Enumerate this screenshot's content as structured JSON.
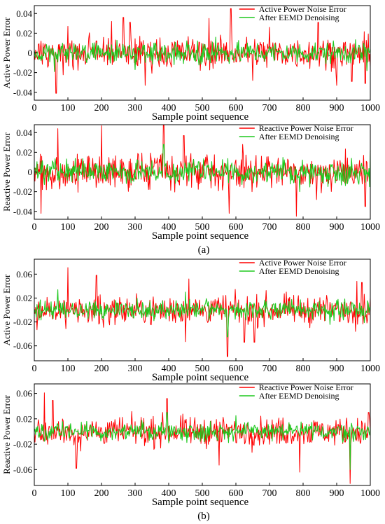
{
  "figure": {
    "captions": [
      "(a)",
      "(b)"
    ]
  },
  "chart_data": [
    {
      "type": "line",
      "ylabel": "Active Power Error",
      "xlabel": "Sample point sequence",
      "xlim": [
        0,
        1000
      ],
      "ylim": [
        -0.048,
        0.048
      ],
      "xticks": [
        0,
        100,
        200,
        300,
        400,
        500,
        600,
        700,
        800,
        900,
        1000
      ],
      "xtick_labels": [
        "0",
        "100",
        "200",
        "300",
        "400",
        "500",
        "600",
        "700",
        "800",
        "900",
        "1000"
      ],
      "yticks": [
        -0.04,
        -0.02,
        0,
        0.02,
        0.04
      ],
      "ytick_labels": [
        "-0.04",
        "-0.02",
        "0",
        "0.02",
        "0.04"
      ],
      "legend_position": "top-right",
      "series": [
        {
          "name": "Active Power Noise Error",
          "color": "#ff0000",
          "seed": 11,
          "amplitude": 0.008,
          "spikes": [
            [
              65,
              -0.041
            ],
            [
              100,
              0.027
            ],
            [
              230,
              0.032
            ],
            [
              265,
              0.036
            ],
            [
              285,
              0.031
            ],
            [
              330,
              -0.033
            ],
            [
              520,
              0.035
            ],
            [
              585,
              0.045
            ],
            [
              650,
              -0.028
            ],
            [
              700,
              0.026
            ],
            [
              845,
              0.031
            ],
            [
              900,
              -0.033
            ],
            [
              945,
              -0.029
            ],
            [
              985,
              -0.031
            ]
          ]
        },
        {
          "name": "After EEMD Denoising",
          "color": "#1ec81e",
          "seed": 12,
          "amplitude": 0.0055,
          "spikes": [
            [
              60,
              -0.019
            ],
            [
              300,
              -0.017
            ],
            [
              540,
              0.016
            ],
            [
              990,
              -0.018
            ]
          ]
        }
      ]
    },
    {
      "type": "line",
      "ylabel": "Reactive Power Error",
      "xlabel": "Sample point sequence",
      "xlim": [
        0,
        1000
      ],
      "ylim": [
        -0.048,
        0.048
      ],
      "xticks": [
        0,
        100,
        200,
        300,
        400,
        500,
        600,
        700,
        800,
        900,
        1000
      ],
      "xtick_labels": [
        "0",
        "100",
        "200",
        "300",
        "400",
        "500",
        "600",
        "700",
        "800",
        "900",
        "1000"
      ],
      "yticks": [
        -0.04,
        -0.02,
        0,
        0.02,
        0.04
      ],
      "ytick_labels": [
        "-0.04",
        "-0.02",
        "0",
        "0.02",
        "0.04"
      ],
      "legend_position": "top-right",
      "series": [
        {
          "name": "Reactive Power Noise Error",
          "color": "#ff0000",
          "seed": 21,
          "amplitude": 0.009,
          "spikes": [
            [
              20,
              -0.042
            ],
            [
              70,
              0.044
            ],
            [
              200,
              0.047
            ],
            [
              385,
              0.049
            ],
            [
              445,
              0.037
            ],
            [
              580,
              -0.042
            ],
            [
              620,
              0.028
            ],
            [
              780,
              -0.045
            ],
            [
              840,
              -0.028
            ],
            [
              985,
              -0.035
            ]
          ]
        },
        {
          "name": "After EEMD Denoising",
          "color": "#1ec81e",
          "seed": 22,
          "amplitude": 0.006,
          "spikes": [
            [
              385,
              0.028
            ],
            [
              790,
              -0.02
            ],
            [
              1000,
              0.022
            ]
          ]
        }
      ]
    },
    {
      "type": "line",
      "ylabel": "Active Power Error",
      "xlabel": "Sample point sequence",
      "xlim": [
        0,
        1000
      ],
      "ylim": [
        -0.085,
        0.085
      ],
      "xticks": [
        0,
        100,
        200,
        300,
        400,
        500,
        600,
        700,
        800,
        900,
        1000
      ],
      "xtick_labels": [
        "0",
        "100",
        "200",
        "300",
        "400",
        "500",
        "600",
        "700",
        "800",
        "900",
        "1000"
      ],
      "yticks": [
        -0.06,
        -0.02,
        0.02,
        0.06
      ],
      "ytick_labels": [
        "-0.06",
        "-0.02",
        "0.02",
        "0.06"
      ],
      "legend_position": "top-right",
      "series": [
        {
          "name": "Active Power Noise Error",
          "color": "#ff0000",
          "seed": 31,
          "amplitude": 0.012,
          "spikes": [
            [
              100,
              0.071
            ],
            [
              185,
              0.058
            ],
            [
              450,
              -0.053
            ],
            [
              460,
              0.052
            ],
            [
              575,
              -0.078
            ],
            [
              625,
              -0.054
            ],
            [
              655,
              -0.054
            ],
            [
              960,
              0.048
            ],
            [
              975,
              0.046
            ]
          ]
        },
        {
          "name": "After EEMD Denoising",
          "color": "#1ec81e",
          "seed": 32,
          "amplitude": 0.008,
          "spikes": [
            [
              70,
              0.034
            ],
            [
              575,
              -0.045
            ],
            [
              450,
              0.03
            ]
          ]
        }
      ]
    },
    {
      "type": "line",
      "ylabel": "Reactive Power Error",
      "xlabel": "Sample point sequence",
      "xlim": [
        0,
        1000
      ],
      "ylim": [
        -0.085,
        0.075
      ],
      "xticks": [
        0,
        100,
        200,
        300,
        400,
        500,
        600,
        700,
        800,
        900,
        1000
      ],
      "xtick_labels": [
        "0",
        "100",
        "200",
        "300",
        "400",
        "500",
        "600",
        "700",
        "800",
        "900",
        "1000"
      ],
      "yticks": [
        -0.06,
        -0.02,
        0.02,
        0.06
      ],
      "ytick_labels": [
        "-0.06",
        "-0.02",
        "0.02",
        "0.06"
      ],
      "legend_position": "top-right",
      "series": [
        {
          "name": "Reactive Power Noise Error",
          "color": "#ff0000",
          "seed": 41,
          "amplitude": 0.011,
          "spikes": [
            [
              30,
              0.061
            ],
            [
              55,
              0.049
            ],
            [
              125,
              -0.058
            ],
            [
              395,
              0.052
            ],
            [
              550,
              -0.053
            ],
            [
              790,
              -0.064
            ],
            [
              940,
              -0.082
            ],
            [
              995,
              0.03
            ]
          ]
        },
        {
          "name": "After EEMD Denoising",
          "color": "#1ec81e",
          "seed": 42,
          "amplitude": 0.007,
          "spikes": [
            [
              395,
              0.03
            ],
            [
              940,
              -0.06
            ],
            [
              600,
              0.025
            ]
          ]
        }
      ]
    }
  ]
}
